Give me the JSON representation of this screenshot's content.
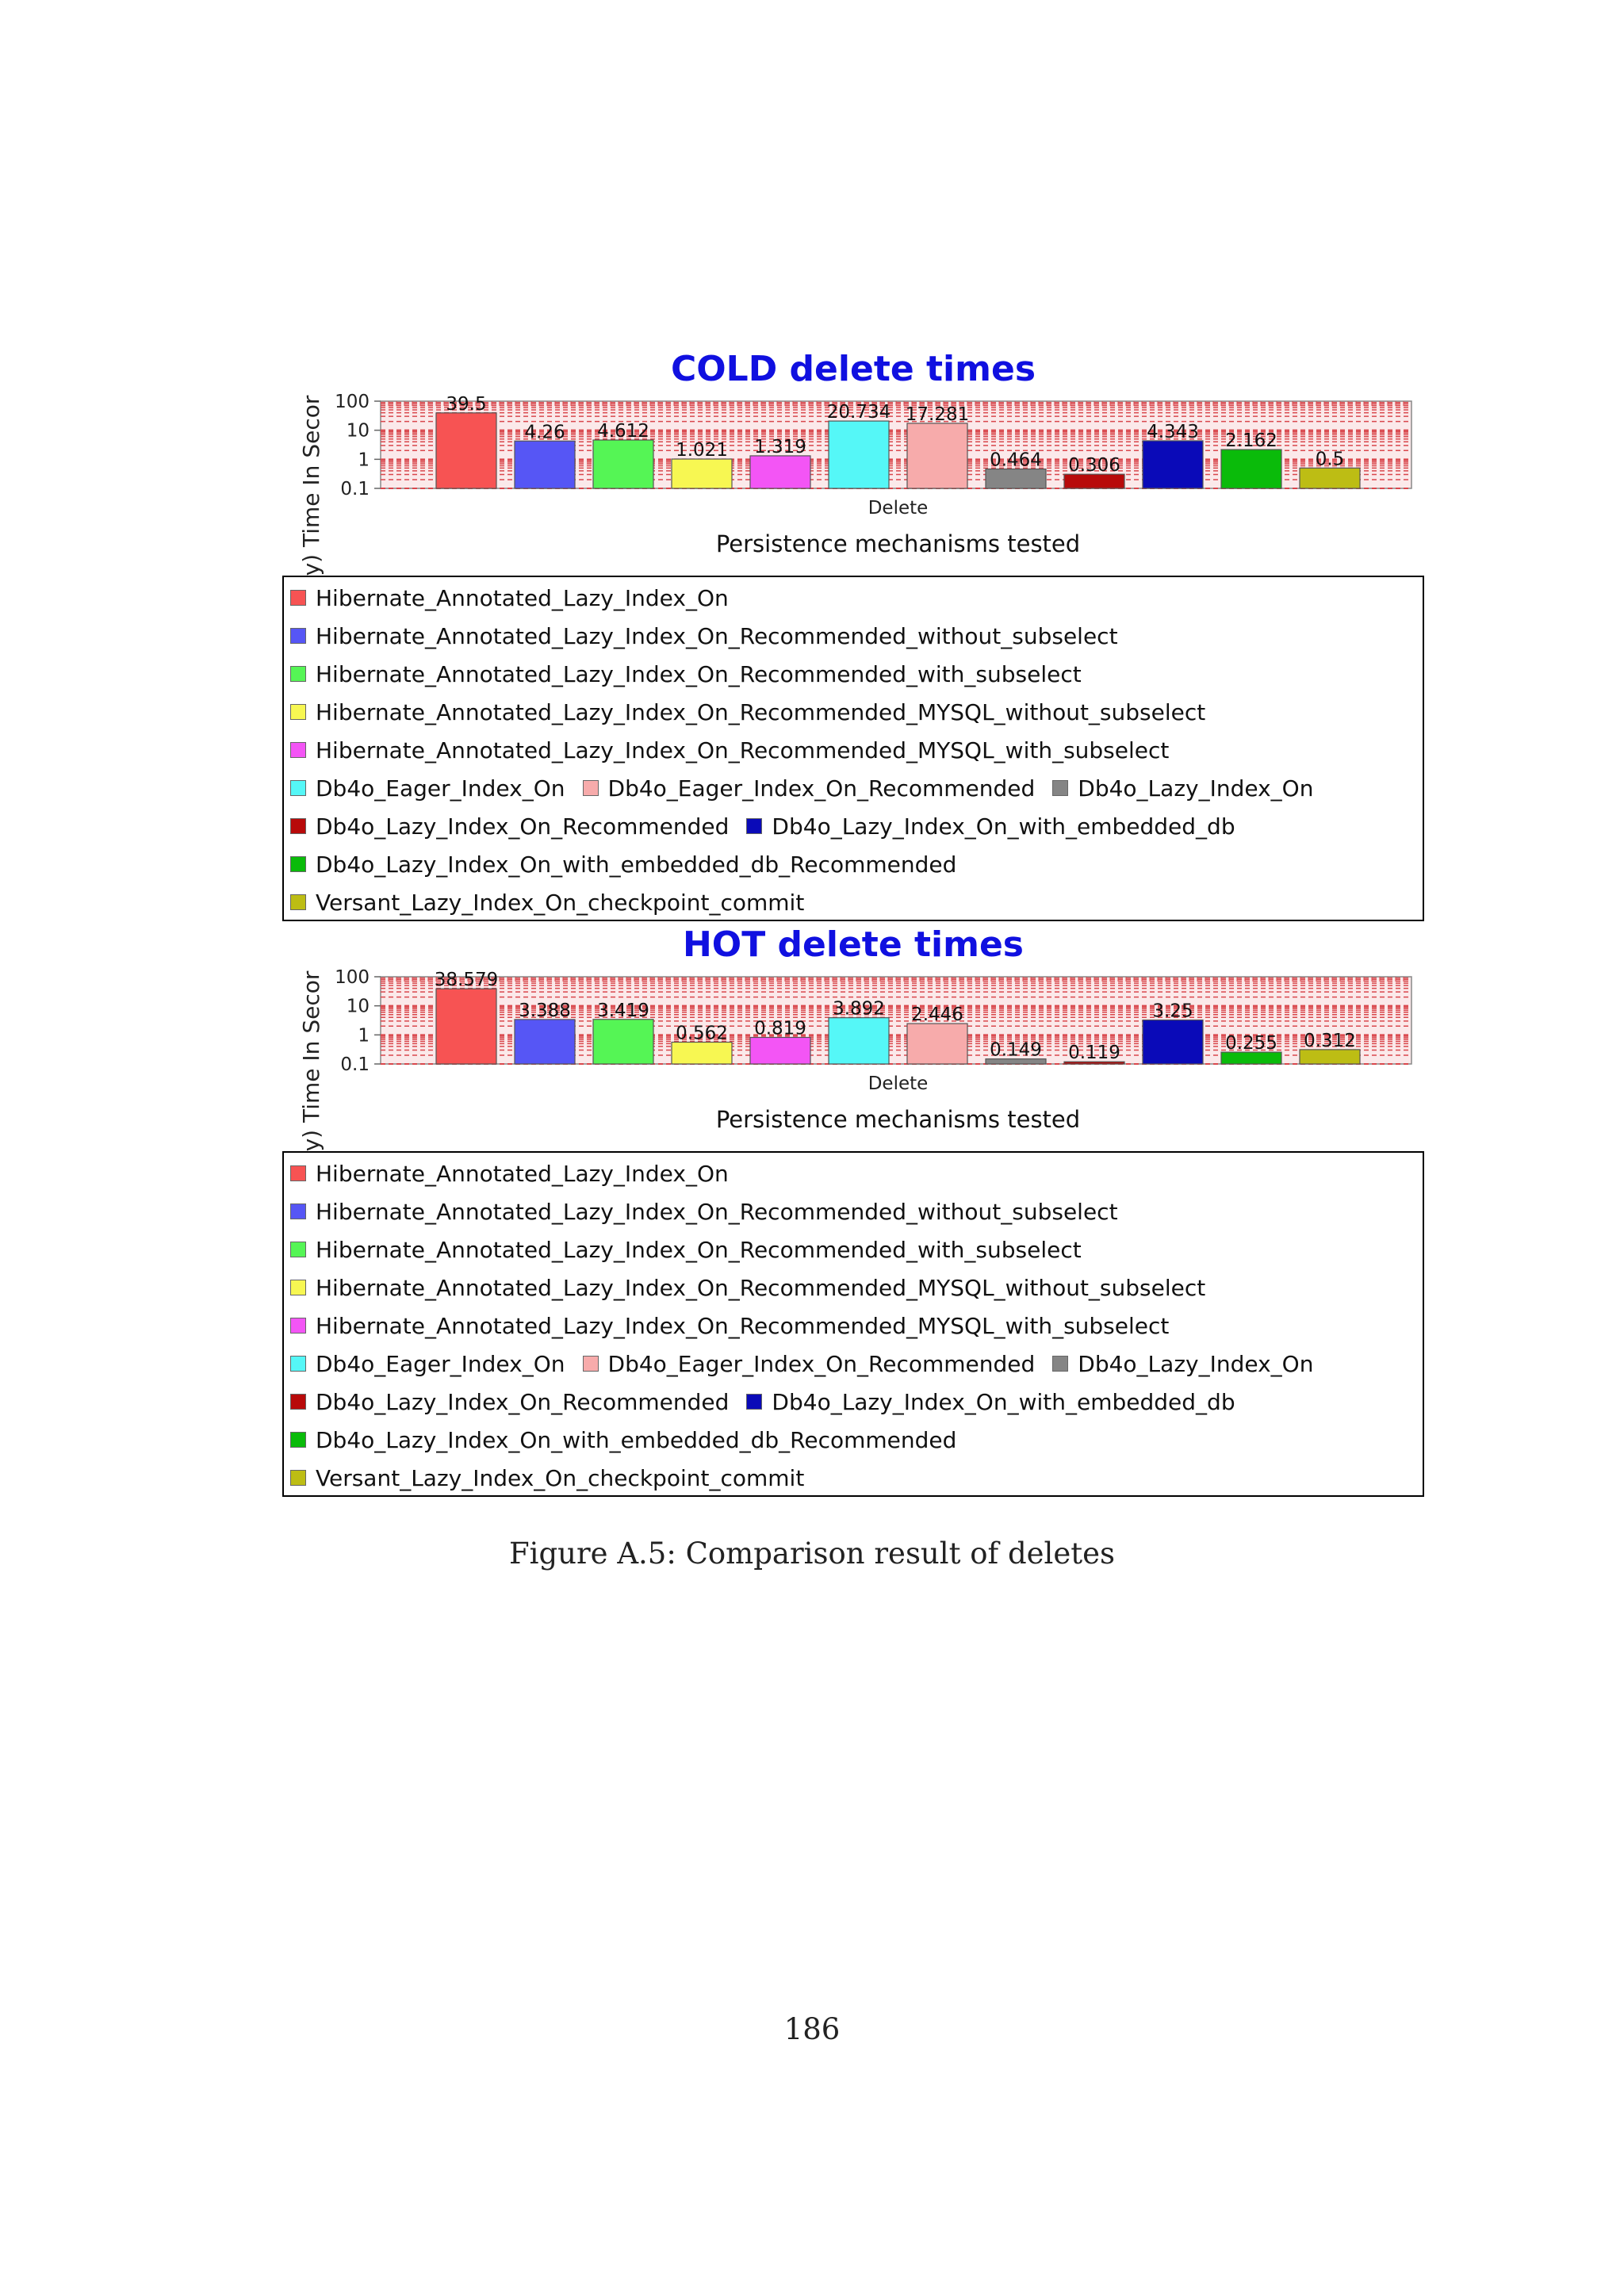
{
  "colors": {
    "title": "#1010e0",
    "plot_background": "#fbe9ea",
    "grid": "#d9474c"
  },
  "figure": {
    "caption": "Figure A.5: Comparison result of deletes",
    "page_number": "186"
  },
  "chart_data": [
    {
      "type": "bar",
      "title": "COLD delete times",
      "xlabel": "Persistence mechanisms tested",
      "ylabel": "Log(y) Time In Secor",
      "yscale": "log",
      "ylim": [
        0.1,
        100
      ],
      "yticks": [
        "100",
        "10",
        "1",
        "0.1"
      ],
      "categories": [
        "Delete"
      ],
      "grid": true,
      "legend_position": "bottom",
      "series": [
        {
          "name": "Hibernate_Annotated_Lazy_Index_On",
          "color": "#f75353",
          "value": 39.5,
          "label": "39.5"
        },
        {
          "name": "Hibernate_Annotated_Lazy_Index_On_Recommended_without_subselect",
          "color": "#5656f5",
          "value": 4.26,
          "label": "4.26"
        },
        {
          "name": "Hibernate_Annotated_Lazy_Index_On_Recommended_with_subselect",
          "color": "#55f555",
          "value": 4.612,
          "label": "4.612"
        },
        {
          "name": "Hibernate_Annotated_Lazy_Index_On_Recommended_MYSQL_without_subselect",
          "color": "#f7f752",
          "value": 1.021,
          "label": "1.021"
        },
        {
          "name": "Hibernate_Annotated_Lazy_Index_On_Recommended_MYSQL_with_subselect",
          "color": "#f355f5",
          "value": 1.319,
          "label": "1.319"
        },
        {
          "name": "Db4o_Eager_Index_On",
          "color": "#55f7f7",
          "value": 20.734,
          "label": "20.734"
        },
        {
          "name": "Db4o_Eager_Index_On_Recommended",
          "color": "#f7abab",
          "value": 17.281,
          "label": "17.281"
        },
        {
          "name": "Db4o_Lazy_Index_On",
          "color": "#858585",
          "value": 0.464,
          "label": "0.464"
        },
        {
          "name": "Db4o_Lazy_Index_On_Recommended",
          "color": "#b80a0a",
          "value": 0.306,
          "label": "0.306"
        },
        {
          "name": "Db4o_Lazy_Index_On_with_embedded_db",
          "color": "#0a0ab8",
          "value": 4.343,
          "label": "4.343"
        },
        {
          "name": "Db4o_Lazy_Index_On_with_embedded_db_Recommended",
          "color": "#0abb0a",
          "value": 2.162,
          "label": "2.162"
        },
        {
          "name": "Versant_Lazy_Index_On_checkpoint_commit",
          "color": "#bdbd14",
          "value": 0.5,
          "label": "0.5"
        }
      ]
    },
    {
      "type": "bar",
      "title": "HOT delete times",
      "xlabel": "Persistence mechanisms tested",
      "ylabel": "Log(y) Time In Secor",
      "yscale": "log",
      "ylim": [
        0.1,
        100
      ],
      "yticks": [
        "100",
        "10",
        "1",
        "0.1"
      ],
      "categories": [
        "Delete"
      ],
      "grid": true,
      "legend_position": "bottom",
      "series": [
        {
          "name": "Hibernate_Annotated_Lazy_Index_On",
          "color": "#f75353",
          "value": 38.579,
          "label": "38.579"
        },
        {
          "name": "Hibernate_Annotated_Lazy_Index_On_Recommended_without_subselect",
          "color": "#5656f5",
          "value": 3.388,
          "label": "3.388"
        },
        {
          "name": "Hibernate_Annotated_Lazy_Index_On_Recommended_with_subselect",
          "color": "#55f555",
          "value": 3.419,
          "label": "3.419"
        },
        {
          "name": "Hibernate_Annotated_Lazy_Index_On_Recommended_MYSQL_without_subselect",
          "color": "#f7f752",
          "value": 0.562,
          "label": "0.562"
        },
        {
          "name": "Hibernate_Annotated_Lazy_Index_On_Recommended_MYSQL_with_subselect",
          "color": "#f355f5",
          "value": 0.819,
          "label": "0.819"
        },
        {
          "name": "Db4o_Eager_Index_On",
          "color": "#55f7f7",
          "value": 3.892,
          "label": "3.892"
        },
        {
          "name": "Db4o_Eager_Index_On_Recommended",
          "color": "#f7abab",
          "value": 2.446,
          "label": "2.446"
        },
        {
          "name": "Db4o_Lazy_Index_On",
          "color": "#858585",
          "value": 0.149,
          "label": "0.149"
        },
        {
          "name": "Db4o_Lazy_Index_On_Recommended",
          "color": "#b80a0a",
          "value": 0.119,
          "label": "0.119"
        },
        {
          "name": "Db4o_Lazy_Index_On_with_embedded_db",
          "color": "#0a0ab8",
          "value": 3.25,
          "label": "3.25"
        },
        {
          "name": "Db4o_Lazy_Index_On_with_embedded_db_Recommended",
          "color": "#0abb0a",
          "value": 0.255,
          "label": "0.255"
        },
        {
          "name": "Versant_Lazy_Index_On_checkpoint_commit",
          "color": "#bdbd14",
          "value": 0.312,
          "label": "0.312"
        }
      ]
    }
  ]
}
